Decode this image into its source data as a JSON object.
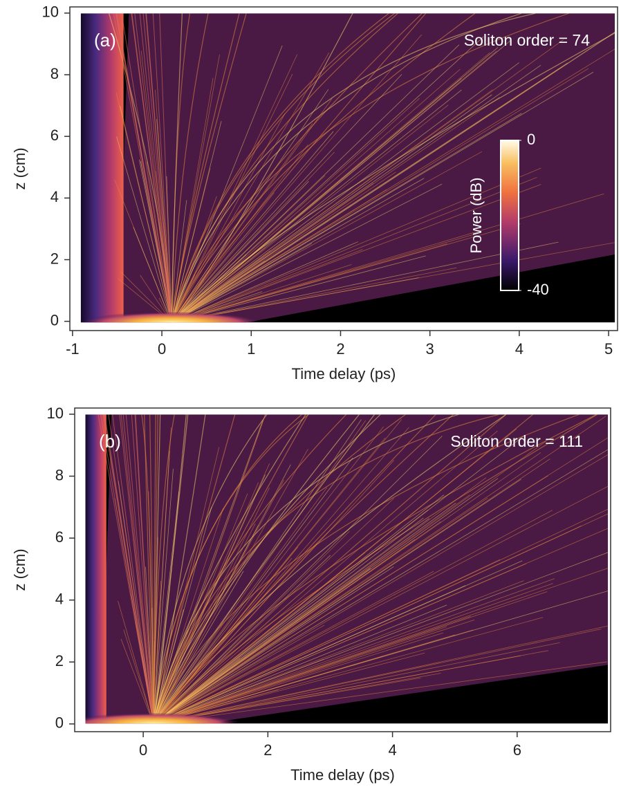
{
  "chart_data": [
    {
      "type": "heatmap",
      "panel_label": "(a)",
      "annotation": "Soliton order = 74",
      "xlabel": "Time delay (ps)",
      "ylabel": "z (cm)",
      "xlim": [
        -1.03,
        5.1
      ],
      "xticks": [
        -1,
        0,
        1,
        2,
        3,
        4,
        5
      ],
      "ylim": [
        -0.3,
        10.2
      ],
      "yticks": [
        0,
        2,
        4,
        6,
        8,
        10
      ],
      "colorbar_label": "Power (dB)",
      "colorbar_lim": [
        -40,
        0
      ],
      "colorbar_ticks": [
        0,
        -40
      ]
    },
    {
      "type": "heatmap",
      "panel_label": "(b)",
      "annotation": "Soliton order = 111",
      "xlabel": "Time delay (ps)",
      "ylabel": "z (cm)",
      "xlim": [
        -1.1,
        7.5
      ],
      "xticks": [
        0,
        2,
        4,
        6
      ],
      "ylim": [
        -0.25,
        10.2
      ],
      "yticks": [
        0,
        2,
        4,
        6,
        8,
        10
      ]
    }
  ]
}
